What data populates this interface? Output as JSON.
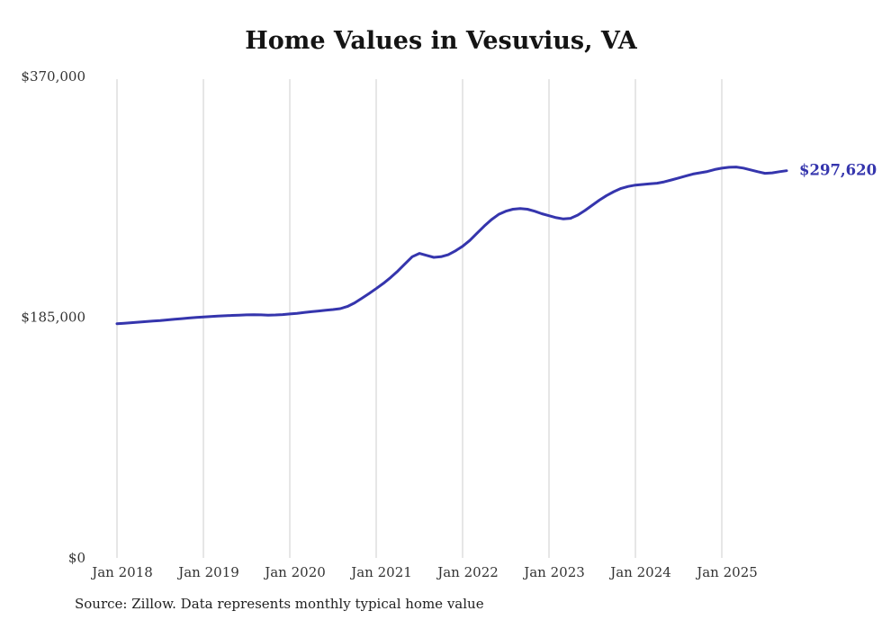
{
  "title": "Home Values in Vesuvius, VA",
  "source": "Source: Zillow. Data represents monthly typical home value",
  "colors": {
    "line": "#3535ad",
    "annotation": "#3535ad",
    "grid": "#cccccc",
    "axis_text": "#333333",
    "title_text": "#141414"
  },
  "chart_data": {
    "type": "line",
    "title": "Home Values in Vesuvius, VA",
    "xlabel": "",
    "ylabel": "",
    "ylim": [
      0,
      370000
    ],
    "grid": "vertical",
    "legend": "none",
    "y_ticks": [
      {
        "value": 0,
        "label": "$0"
      },
      {
        "value": 185000,
        "label": "$185,000"
      },
      {
        "value": 370000,
        "label": "$370,000"
      }
    ],
    "x_ticks": [
      {
        "index": 0,
        "label": "Jan 2018"
      },
      {
        "index": 12,
        "label": "Jan 2019"
      },
      {
        "index": 24,
        "label": "Jan 2020"
      },
      {
        "index": 36,
        "label": "Jan 2021"
      },
      {
        "index": 48,
        "label": "Jan 2022"
      },
      {
        "index": 60,
        "label": "Jan 2023"
      },
      {
        "index": 72,
        "label": "Jan 2024"
      },
      {
        "index": 84,
        "label": "Jan 2025"
      }
    ],
    "annotation": {
      "label": "$297,620",
      "value": 297620
    },
    "x": [
      "2018-01",
      "2018-02",
      "2018-03",
      "2018-04",
      "2018-05",
      "2018-06",
      "2018-07",
      "2018-08",
      "2018-09",
      "2018-10",
      "2018-11",
      "2018-12",
      "2019-01",
      "2019-02",
      "2019-03",
      "2019-04",
      "2019-05",
      "2019-06",
      "2019-07",
      "2019-08",
      "2019-09",
      "2019-10",
      "2019-11",
      "2019-12",
      "2020-01",
      "2020-02",
      "2020-03",
      "2020-04",
      "2020-05",
      "2020-06",
      "2020-07",
      "2020-08",
      "2020-09",
      "2020-10",
      "2020-11",
      "2020-12",
      "2021-01",
      "2021-02",
      "2021-03",
      "2021-04",
      "2021-05",
      "2021-06",
      "2021-07",
      "2021-08",
      "2021-09",
      "2021-10",
      "2021-11",
      "2021-12",
      "2022-01",
      "2022-02",
      "2022-03",
      "2022-04",
      "2022-05",
      "2022-06",
      "2022-07",
      "2022-08",
      "2022-09",
      "2022-10",
      "2022-11",
      "2022-12",
      "2023-01",
      "2023-02",
      "2023-03",
      "2023-04",
      "2023-05",
      "2023-06",
      "2023-07",
      "2023-08",
      "2023-09",
      "2023-10",
      "2023-11",
      "2023-12",
      "2024-01",
      "2024-02",
      "2024-03",
      "2024-04",
      "2024-05",
      "2024-06",
      "2024-07",
      "2024-08",
      "2024-09",
      "2024-10",
      "2024-11",
      "2024-12",
      "2025-01",
      "2025-02",
      "2025-03",
      "2025-04",
      "2025-05",
      "2025-06",
      "2025-07",
      "2025-08",
      "2025-09",
      "2025-10"
    ],
    "values": [
      180000,
      180400,
      180800,
      181200,
      181600,
      182000,
      182400,
      182900,
      183400,
      183900,
      184400,
      184800,
      185200,
      185500,
      185800,
      186100,
      186400,
      186600,
      186800,
      186900,
      186800,
      186600,
      186700,
      187000,
      187500,
      188000,
      188600,
      189200,
      189800,
      190300,
      190900,
      191600,
      193200,
      196000,
      199500,
      203200,
      207000,
      211000,
      215500,
      220500,
      226000,
      231500,
      234000,
      232500,
      231000,
      231500,
      233000,
      236000,
      239500,
      244000,
      249500,
      255000,
      260000,
      264000,
      266500,
      268000,
      268500,
      268000,
      266500,
      264500,
      263000,
      261500,
      260500,
      261000,
      263500,
      267000,
      271000,
      275000,
      278500,
      281500,
      284000,
      285500,
      286500,
      287000,
      287500,
      288000,
      289000,
      290500,
      292000,
      293500,
      295000,
      296000,
      297000,
      298500,
      299500,
      300200,
      300400,
      299600,
      298200,
      296800,
      295600,
      295900,
      296800,
      297620
    ]
  }
}
